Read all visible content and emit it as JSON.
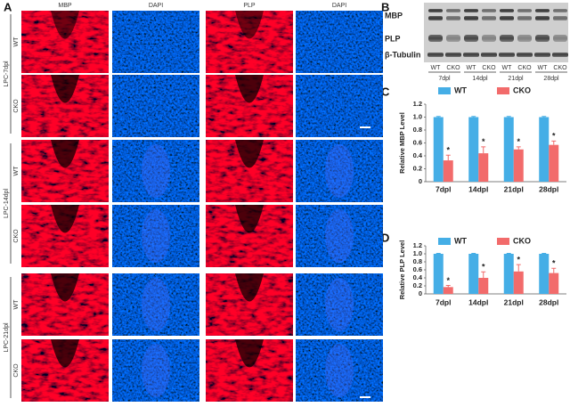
{
  "panel_labels": [
    "A",
    "B",
    "C",
    "D"
  ],
  "panel_a": {
    "column_headers": [
      "MBP",
      "DAPI",
      "PLP",
      "DAPI"
    ],
    "groups": [
      {
        "label": "LPC-7dpl",
        "rows": [
          "WT",
          "CKO"
        ]
      },
      {
        "label": "LPC-14dpl",
        "rows": [
          "WT",
          "CKO"
        ]
      },
      {
        "label": "LPC-21dpl",
        "rows": [
          "WT",
          "CKO"
        ]
      }
    ]
  },
  "panel_b": {
    "proteins": [
      "MBP",
      "PLP",
      "β-Tubulin"
    ],
    "lane_labels": [
      "WT",
      "CKO",
      "WT",
      "CKO",
      "WT",
      "CKO",
      "WT",
      "CKO"
    ],
    "timepoints": [
      "7dpl",
      "14dpl",
      "21dpl",
      "28dpl"
    ]
  },
  "chart_data": [
    {
      "type": "bar",
      "y_label": "Relative MBP Level",
      "categories": [
        "7dpl",
        "14dpl",
        "21dpl",
        "28dpl"
      ],
      "series": [
        {
          "name": "WT",
          "color": "#45aee6",
          "values": [
            1.0,
            1.0,
            1.0,
            1.0
          ],
          "errors": [
            0.01,
            0.01,
            0.01,
            0.01
          ]
        },
        {
          "name": "CKO",
          "color": "#f26b6b",
          "values": [
            0.33,
            0.44,
            0.5,
            0.57
          ],
          "errors": [
            0.08,
            0.1,
            0.04,
            0.06
          ]
        }
      ],
      "annotations": [
        "*",
        "*",
        "*",
        "*"
      ],
      "ylim": [
        0,
        1.2
      ],
      "yticks": [
        0,
        0.2,
        0.4,
        0.6,
        0.8,
        {
          "value": 1,
          "label": "1.0"
        },
        1.2
      ],
      "legend": "top"
    },
    {
      "type": "bar",
      "y_label": "Relative PLP Level",
      "categories": [
        "7dpl",
        "14dpl",
        "21dpl",
        "28dpl"
      ],
      "series": [
        {
          "name": "WT",
          "color": "#45aee6",
          "values": [
            1.0,
            1.0,
            1.0,
            1.0
          ],
          "errors": [
            0.01,
            0.01,
            0.01,
            0.01
          ]
        },
        {
          "name": "CKO",
          "color": "#f26b6b",
          "values": [
            0.17,
            0.4,
            0.56,
            0.52
          ],
          "errors": [
            0.04,
            0.15,
            0.17,
            0.12
          ]
        }
      ],
      "annotations": [
        "*",
        "*",
        "*",
        "*"
      ],
      "ylim": [
        0,
        1.2
      ],
      "yticks": [
        0,
        0.2,
        0.4,
        0.6,
        0.8,
        {
          "value": 1,
          "label": "1.0"
        },
        1.2
      ],
      "legend": "top"
    }
  ]
}
